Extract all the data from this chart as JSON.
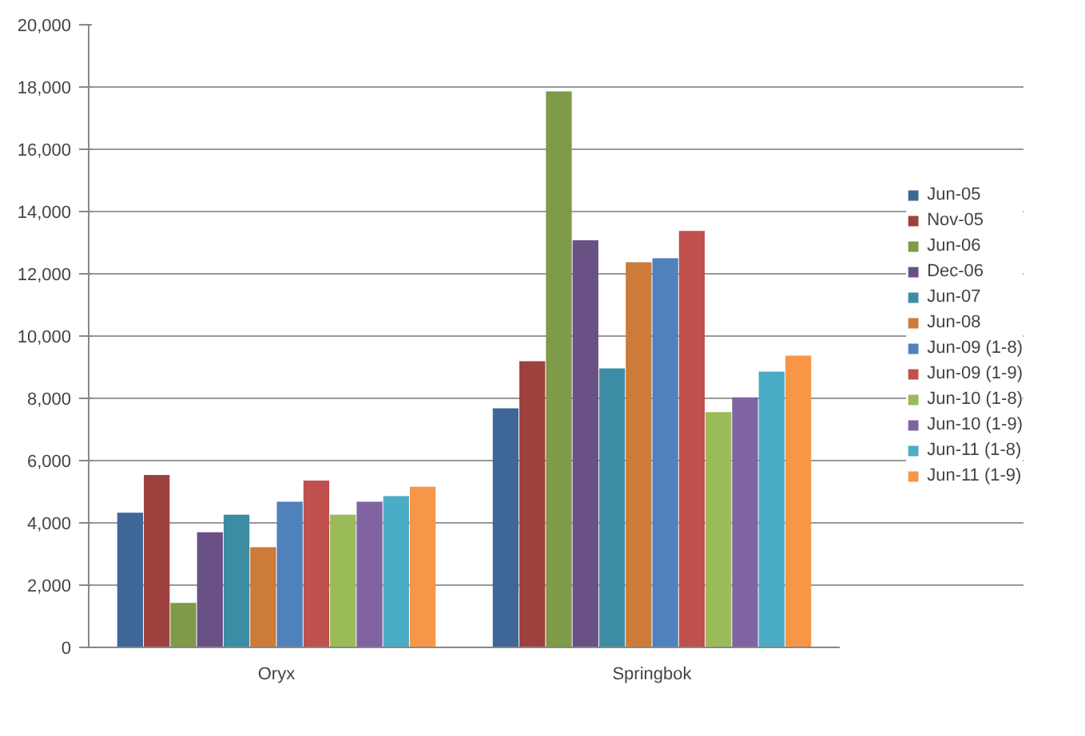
{
  "chart_data": {
    "type": "bar",
    "categories": [
      "Oryx",
      "Springbok"
    ],
    "series": [
      {
        "name": "Jun-05",
        "color": "#3e6797",
        "values": [
          4330,
          7680
        ]
      },
      {
        "name": "Nov-05",
        "color": "#9e413e",
        "values": [
          5540,
          9190
        ]
      },
      {
        "name": "Jun-06",
        "color": "#7f9a48",
        "values": [
          1430,
          17860
        ]
      },
      {
        "name": "Dec-06",
        "color": "#695185",
        "values": [
          3700,
          13080
        ]
      },
      {
        "name": "Jun-07",
        "color": "#3c8da3",
        "values": [
          4260,
          8960
        ]
      },
      {
        "name": "Jun-08",
        "color": "#cc7b38",
        "values": [
          3220,
          12370
        ]
      },
      {
        "name": "Jun-09 (1-8)",
        "color": "#4f81bd",
        "values": [
          4680,
          12500
        ]
      },
      {
        "name": "Jun-09 (1-9)",
        "color": "#c0504d",
        "values": [
          5360,
          13380
        ]
      },
      {
        "name": "Jun-10 (1-8)",
        "color": "#9bbb59",
        "values": [
          4260,
          7560
        ]
      },
      {
        "name": "Jun-10 (1-9)",
        "color": "#8064a2",
        "values": [
          4680,
          8030
        ]
      },
      {
        "name": "Jun-11 (1-8)",
        "color": "#4bacc6",
        "values": [
          4860,
          8860
        ]
      },
      {
        "name": "Jun-11 (1-9)",
        "color": "#f79646",
        "values": [
          5160,
          9370
        ]
      }
    ],
    "ylim": [
      0,
      20000
    ],
    "yticks": [
      {
        "value": 0,
        "label": "0"
      },
      {
        "value": 2000,
        "label": "2,000"
      },
      {
        "value": 4000,
        "label": "4,000"
      },
      {
        "value": 6000,
        "label": "6,000"
      },
      {
        "value": 8000,
        "label": "8,000"
      },
      {
        "value": 10000,
        "label": "10,000"
      },
      {
        "value": 12000,
        "label": "12,000"
      },
      {
        "value": 14000,
        "label": "14,000"
      },
      {
        "value": 16000,
        "label": "16,000"
      },
      {
        "value": 18000,
        "label": "18,000"
      },
      {
        "value": 20000,
        "label": "20,000"
      }
    ],
    "grid": "y",
    "legend": "right"
  }
}
